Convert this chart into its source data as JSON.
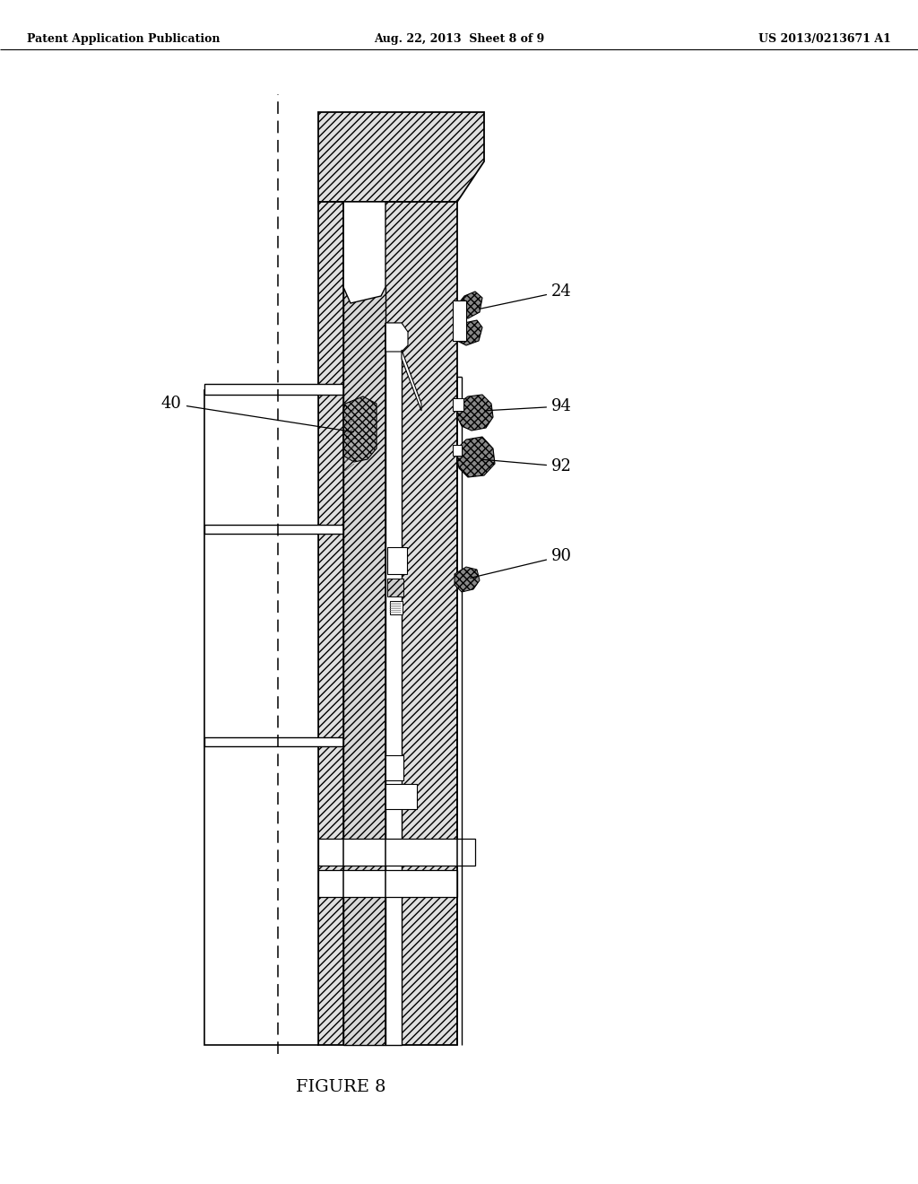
{
  "header_left": "Patent Application Publication",
  "header_mid": "Aug. 22, 2013  Sheet 8 of 9",
  "header_right": "US 2013/0213671 A1",
  "figure_caption": "FIGURE 8",
  "bg_color": "#ffffff"
}
